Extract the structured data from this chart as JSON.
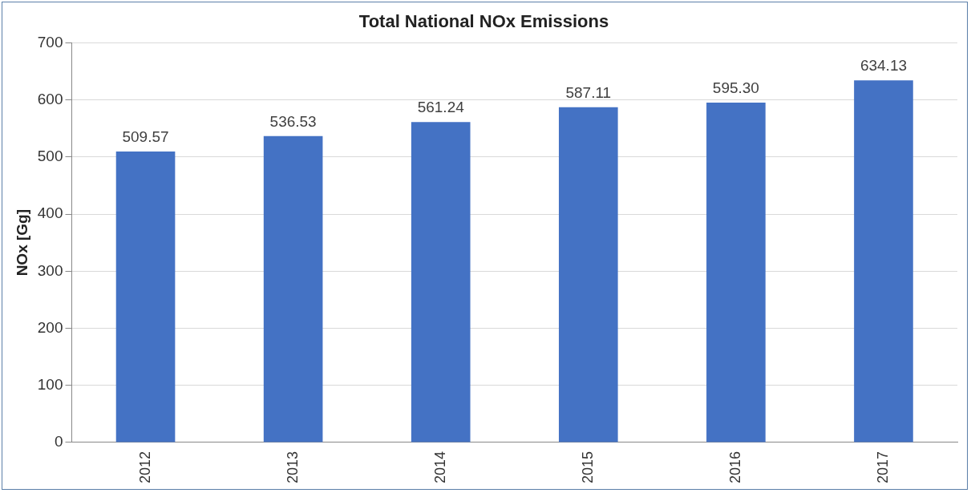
{
  "chart_data": {
    "type": "bar",
    "title": "Total National NOx Emissions",
    "ylabel": "NOx [Gg]",
    "categories": [
      "2012",
      "2013",
      "2014",
      "2015",
      "2016",
      "2017"
    ],
    "values": [
      509.57,
      536.53,
      561.24,
      587.11,
      595.3,
      634.13
    ],
    "value_labels": [
      "509.57",
      "536.53",
      "561.24",
      "587.11",
      "595.30",
      "634.13"
    ],
    "color": "#4472c4",
    "ylim": [
      0,
      700
    ],
    "yticks": [
      0,
      100,
      200,
      300,
      400,
      500,
      600,
      700
    ],
    "grid": "y"
  }
}
